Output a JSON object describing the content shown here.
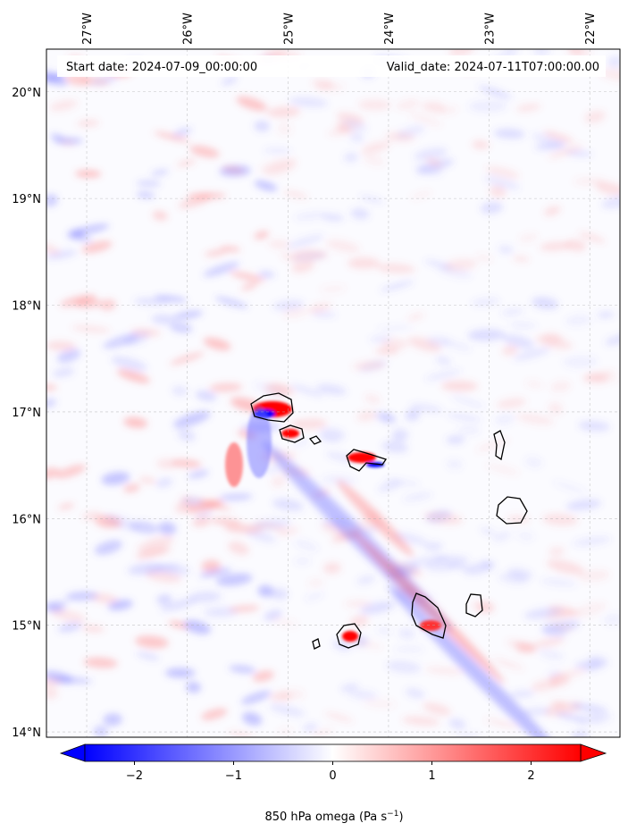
{
  "chart_data": {
    "type": "heatmap",
    "title": "",
    "annotations": {
      "start_date": "Start date: 2024-07-09_00:00:00",
      "valid_date": "Valid_date: 2024-07-11T07:00:00.00"
    },
    "x_ticks": [
      "27°W",
      "26°W",
      "25°W",
      "24°W",
      "23°W",
      "22°W"
    ],
    "x_tick_values": [
      -27,
      -26,
      -25,
      -24,
      -23,
      -22
    ],
    "y_ticks": [
      "20°N",
      "19°N",
      "18°N",
      "17°N",
      "16°N",
      "15°N",
      "14°N"
    ],
    "y_tick_values": [
      20,
      19,
      18,
      17,
      16,
      15,
      14
    ],
    "xlim": [
      -27.4,
      -21.7
    ],
    "ylim": [
      13.95,
      20.4
    ],
    "grid": true,
    "colorbar": {
      "label": "850 hPa omega (Pa s",
      "label_sup": "−1",
      "label_close": ")",
      "ticks": [
        "−2",
        "−1",
        "0",
        "1",
        "2"
      ],
      "tick_values": [
        -2,
        -1,
        0,
        1,
        2
      ],
      "range": [
        -2.5,
        2.5
      ],
      "extend": "both",
      "colormap": "bwr",
      "low_color": "#0000ff",
      "mid_color": "#ffffff",
      "high_color": "#ff0000"
    }
  }
}
